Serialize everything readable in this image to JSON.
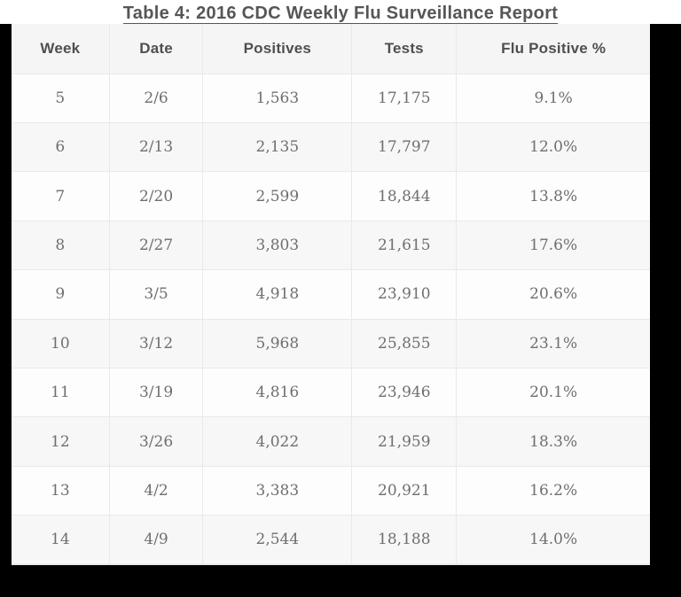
{
  "title": "Table 4: 2016 CDC Weekly Flu Surveillance Report",
  "table": {
    "columns": [
      "Week",
      "Date",
      "Positives",
      "Tests",
      "Flu Positive %"
    ],
    "rows": [
      {
        "week": "5",
        "date": "2/6",
        "positives": "1,563",
        "tests": "17,175",
        "flu_positive_pct": "9.1%"
      },
      {
        "week": "6",
        "date": "2/13",
        "positives": "2,135",
        "tests": "17,797",
        "flu_positive_pct": "12.0%"
      },
      {
        "week": "7",
        "date": "2/20",
        "positives": "2,599",
        "tests": "18,844",
        "flu_positive_pct": "13.8%"
      },
      {
        "week": "8",
        "date": "2/27",
        "positives": "3,803",
        "tests": "21,615",
        "flu_positive_pct": "17.6%"
      },
      {
        "week": "9",
        "date": "3/5",
        "positives": "4,918",
        "tests": "23,910",
        "flu_positive_pct": "20.6%"
      },
      {
        "week": "10",
        "date": "3/12",
        "positives": "5,968",
        "tests": "25,855",
        "flu_positive_pct": "23.1%"
      },
      {
        "week": "11",
        "date": "3/19",
        "positives": "4,816",
        "tests": "23,946",
        "flu_positive_pct": "20.1%"
      },
      {
        "week": "12",
        "date": "3/26",
        "positives": "4,022",
        "tests": "21,959",
        "flu_positive_pct": "18.3%"
      },
      {
        "week": "13",
        "date": "4/2",
        "positives": "3,383",
        "tests": "20,921",
        "flu_positive_pct": "16.2%"
      },
      {
        "week": "14",
        "date": "4/9",
        "positives": "2,544",
        "tests": "18,188",
        "flu_positive_pct": "14.0%"
      }
    ]
  },
  "colors": {
    "page_bg": "#000000",
    "title_band_bg": "#ffffff",
    "title_text": "#565656",
    "header_text": "#4f4f4f",
    "body_text": "#6f6f6f",
    "header_bg": "#f5f5f5",
    "row_bg": "#fdfdfd",
    "row_alt_bg": "#f7f7f7",
    "border": "#e9e9e9"
  },
  "chart_data": {
    "type": "table",
    "title": "Table 4: 2016 CDC Weekly Flu Surveillance Report",
    "columns": [
      "Week",
      "Date",
      "Positives",
      "Tests",
      "Flu Positive %"
    ],
    "rows": [
      [
        5,
        "2/6",
        1563,
        17175,
        9.1
      ],
      [
        6,
        "2/13",
        2135,
        17797,
        12.0
      ],
      [
        7,
        "2/20",
        2599,
        18844,
        13.8
      ],
      [
        8,
        "2/27",
        3803,
        21615,
        17.6
      ],
      [
        9,
        "3/5",
        4918,
        23910,
        20.6
      ],
      [
        10,
        "3/12",
        5968,
        25855,
        23.1
      ],
      [
        11,
        "3/19",
        4816,
        23946,
        20.1
      ],
      [
        12,
        "3/26",
        4022,
        21959,
        18.3
      ],
      [
        13,
        "4/2",
        3383,
        20921,
        16.2
      ],
      [
        14,
        "4/9",
        2544,
        18188,
        14.0
      ]
    ]
  }
}
